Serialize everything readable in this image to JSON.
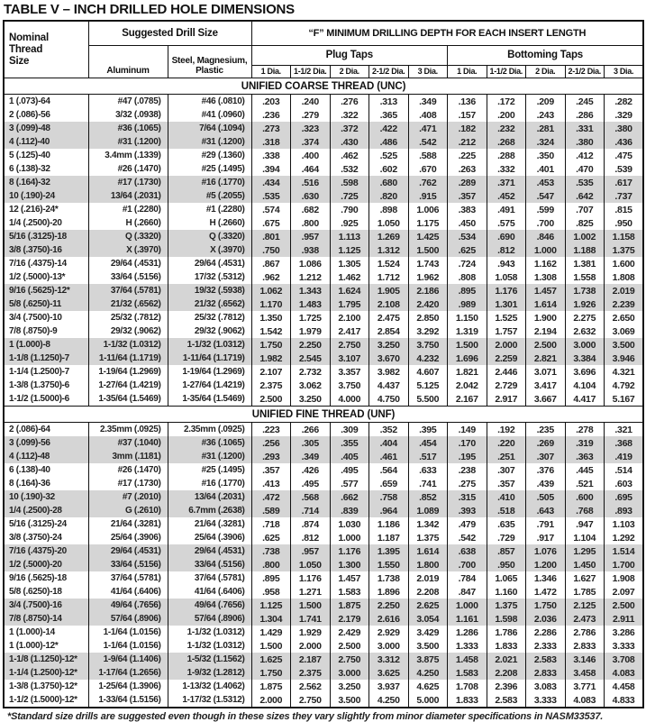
{
  "title": "TABLE V – INCH DRILLED HOLE DIMENSIONS",
  "header": {
    "nominal": "Nominal\nThread\nSize",
    "suggested": "Suggested Drill Size",
    "aluminum": "Aluminum",
    "steel": "Steel, Magnesium,\nPlastic",
    "f_header": "“F” MINIMUM DRILLING DEPTH FOR EACH INSERT LENGTH",
    "plug": "Plug Taps",
    "bottoming": "Bottoming Taps",
    "dia_labels": [
      "1 Dia.",
      "1-1/2 Dia.",
      "2 Dia.",
      "2-1/2 Dia.",
      "3 Dia."
    ]
  },
  "colors": {
    "row_shade": "#d5d5d5",
    "border": "#111111",
    "text": "#1b1b1b"
  },
  "sections": [
    {
      "name": "UNIFIED COARSE THREAD (UNC)",
      "rows": [
        {
          "size": "1 (.073)-64",
          "aluminum": "#47 (.0785)",
          "steel": "#46 (.0810)",
          "plug": [
            ".203",
            ".240",
            ".276",
            ".313",
            ".349"
          ],
          "bottoming": [
            ".136",
            ".172",
            ".209",
            ".245",
            ".282"
          ],
          "shaded": false
        },
        {
          "size": "2 (.086)-56",
          "aluminum": "3/32 (.0938)",
          "steel": "#41 (.0960)",
          "plug": [
            ".236",
            ".279",
            ".322",
            ".365",
            ".408"
          ],
          "bottoming": [
            ".157",
            ".200",
            ".243",
            ".286",
            ".329"
          ],
          "shaded": false
        },
        {
          "size": "3 (.099)-48",
          "aluminum": "#36 (.1065)",
          "steel": "7/64 (.1094)",
          "plug": [
            ".273",
            ".323",
            ".372",
            ".422",
            ".471"
          ],
          "bottoming": [
            ".182",
            ".232",
            ".281",
            ".331",
            ".380"
          ],
          "shaded": true
        },
        {
          "size": "4 (.112)-40",
          "aluminum": "#31 (.1200)",
          "steel": "#31 (.1200)",
          "plug": [
            ".318",
            ".374",
            ".430",
            ".486",
            ".542"
          ],
          "bottoming": [
            ".212",
            ".268",
            ".324",
            ".380",
            ".436"
          ],
          "shaded": true
        },
        {
          "size": "5 (.125)-40",
          "aluminum": "3.4mm (.1339)",
          "steel": "#29 (.1360)",
          "plug": [
            ".338",
            ".400",
            ".462",
            ".525",
            ".588"
          ],
          "bottoming": [
            ".225",
            ".288",
            ".350",
            ".412",
            ".475"
          ],
          "shaded": false
        },
        {
          "size": "6 (.138)-32",
          "aluminum": "#26 (.1470)",
          "steel": "#25 (.1495)",
          "plug": [
            ".394",
            ".464",
            ".532",
            ".602",
            ".670"
          ],
          "bottoming": [
            ".263",
            ".332",
            ".401",
            ".470",
            ".539"
          ],
          "shaded": false
        },
        {
          "size": "8 (.164)-32",
          "aluminum": "#17 (.1730)",
          "steel": "#16 (.1770)",
          "plug": [
            ".434",
            ".516",
            ".598",
            ".680",
            ".762"
          ],
          "bottoming": [
            ".289",
            ".371",
            ".453",
            ".535",
            ".617"
          ],
          "shaded": true
        },
        {
          "size": "10 (.190)-24",
          "aluminum": "13/64 (.2031)",
          "steel": "#5 (.2055)",
          "plug": [
            ".535",
            ".630",
            ".725",
            ".820",
            ".915"
          ],
          "bottoming": [
            ".357",
            ".452",
            ".547",
            ".642",
            ".737"
          ],
          "shaded": true
        },
        {
          "size": "12 (.216)-24*",
          "aluminum": "#1 (.2280)",
          "steel": "#1 (.2280)",
          "plug": [
            ".574",
            ".682",
            ".790",
            ".898",
            "1.006"
          ],
          "bottoming": [
            ".383",
            ".491",
            ".599",
            ".707",
            ".815"
          ],
          "shaded": false
        },
        {
          "size": "1/4 (.2500)-20",
          "aluminum": "H (.2660)",
          "steel": "H (.2660)",
          "plug": [
            ".675",
            ".800",
            ".925",
            "1.050",
            "1.175"
          ],
          "bottoming": [
            ".450",
            ".575",
            ".700",
            ".825",
            ".950"
          ],
          "shaded": false
        },
        {
          "size": "5/16 (.3125)-18",
          "aluminum": "Q (.3320)",
          "steel": "Q (.3320)",
          "plug": [
            ".801",
            ".957",
            "1.113",
            "1.269",
            "1.425"
          ],
          "bottoming": [
            ".534",
            ".690",
            ".846",
            "1.002",
            "1.158"
          ],
          "shaded": true
        },
        {
          "size": "3/8 (.3750)-16",
          "aluminum": "X (.3970)",
          "steel": "X (.3970)",
          "plug": [
            ".750",
            ".938",
            "1.125",
            "1.312",
            "1.500"
          ],
          "bottoming": [
            ".625",
            ".812",
            "1.000",
            "1.188",
            "1.375"
          ],
          "shaded": true
        },
        {
          "size": "7/16 (.4375)-14",
          "aluminum": "29/64 (.4531)",
          "steel": "29/64 (.4531)",
          "plug": [
            ".867",
            "1.086",
            "1.305",
            "1.524",
            "1.743"
          ],
          "bottoming": [
            ".724",
            ".943",
            "1.162",
            "1.381",
            "1.600"
          ],
          "shaded": false
        },
        {
          "size": "1/2 (.5000)-13*",
          "aluminum": "33/64 (.5156)",
          "steel": "17/32 (.5312)",
          "plug": [
            ".962",
            "1.212",
            "1.462",
            "1.712",
            "1.962"
          ],
          "bottoming": [
            ".808",
            "1.058",
            "1.308",
            "1.558",
            "1.808"
          ],
          "shaded": false
        },
        {
          "size": "9/16 (.5625)-12*",
          "aluminum": "37/64 (.5781)",
          "steel": "19/32 (.5938)",
          "plug": [
            "1.062",
            "1.343",
            "1.624",
            "1.905",
            "2.186"
          ],
          "bottoming": [
            ".895",
            "1.176",
            "1.457",
            "1.738",
            "2.019"
          ],
          "shaded": true
        },
        {
          "size": "5/8 (.6250)-11",
          "aluminum": "21/32 (.6562)",
          "steel": "21/32 (.6562)",
          "plug": [
            "1.170",
            "1.483",
            "1.795",
            "2.108",
            "2.420"
          ],
          "bottoming": [
            ".989",
            "1.301",
            "1.614",
            "1.926",
            "2.239"
          ],
          "shaded": true
        },
        {
          "size": "3/4 (.7500)-10",
          "aluminum": "25/32 (.7812)",
          "steel": "25/32 (.7812)",
          "plug": [
            "1.350",
            "1.725",
            "2.100",
            "2.475",
            "2.850"
          ],
          "bottoming": [
            "1.150",
            "1.525",
            "1.900",
            "2.275",
            "2.650"
          ],
          "shaded": false
        },
        {
          "size": "7/8 (.8750)-9",
          "aluminum": "29/32 (.9062)",
          "steel": "29/32 (.9062)",
          "plug": [
            "1.542",
            "1.979",
            "2.417",
            "2.854",
            "3.292"
          ],
          "bottoming": [
            "1.319",
            "1.757",
            "2.194",
            "2.632",
            "3.069"
          ],
          "shaded": false
        },
        {
          "size": "1 (1.000)-8",
          "aluminum": "1-1/32 (1.0312)",
          "steel": "1-1/32 (1.0312)",
          "plug": [
            "1.750",
            "2.250",
            "2.750",
            "3.250",
            "3.750"
          ],
          "bottoming": [
            "1.500",
            "2.000",
            "2.500",
            "3.000",
            "3.500"
          ],
          "shaded": true
        },
        {
          "size": "1-1/8 (1.1250)-7",
          "aluminum": "1-11/64 (1.1719)",
          "steel": "1-11/64 (1.1719)",
          "plug": [
            "1.982",
            "2.545",
            "3.107",
            "3.670",
            "4.232"
          ],
          "bottoming": [
            "1.696",
            "2.259",
            "2.821",
            "3.384",
            "3.946"
          ],
          "shaded": true
        },
        {
          "size": "1-1/4 (1.2500)-7",
          "aluminum": "1-19/64 (1.2969)",
          "steel": "1-19/64 (1.2969)",
          "plug": [
            "2.107",
            "2.732",
            "3.357",
            "3.982",
            "4.607"
          ],
          "bottoming": [
            "1.821",
            "2.446",
            "3.071",
            "3.696",
            "4.321"
          ],
          "shaded": false
        },
        {
          "size": "1-3/8 (1.3750)-6",
          "aluminum": "1-27/64 (1.4219)",
          "steel": "1-27/64 (1.4219)",
          "plug": [
            "2.375",
            "3.062",
            "3.750",
            "4.437",
            "5.125"
          ],
          "bottoming": [
            "2.042",
            "2.729",
            "3.417",
            "4.104",
            "4.792"
          ],
          "shaded": false
        },
        {
          "size": "1-1/2 (1.5000)-6",
          "aluminum": "1-35/64 (1.5469)",
          "steel": "1-35/64 (1.5469)",
          "plug": [
            "2.500",
            "3.250",
            "4.000",
            "4.750",
            "5.500"
          ],
          "bottoming": [
            "2.167",
            "2.917",
            "3.667",
            "4.417",
            "5.167"
          ],
          "shaded": false
        }
      ]
    },
    {
      "name": "UNIFIED FINE THREAD (UNF)",
      "rows": [
        {
          "size": "2 (.086)-64",
          "aluminum": "2.35mm (.0925)",
          "steel": "2.35mm (.0925)",
          "plug": [
            ".223",
            ".266",
            ".309",
            ".352",
            ".395"
          ],
          "bottoming": [
            ".149",
            ".192",
            ".235",
            ".278",
            ".321"
          ],
          "shaded": false
        },
        {
          "size": "3 (.099)-56",
          "aluminum": "#37 (.1040)",
          "steel": "#36 (.1065)",
          "plug": [
            ".256",
            ".305",
            ".355",
            ".404",
            ".454"
          ],
          "bottoming": [
            ".170",
            ".220",
            ".269",
            ".319",
            ".368"
          ],
          "shaded": true
        },
        {
          "size": "4 (.112)-48",
          "aluminum": "3mm (.1181)",
          "steel": "#31 (.1200)",
          "plug": [
            ".293",
            ".349",
            ".405",
            ".461",
            ".517"
          ],
          "bottoming": [
            ".195",
            ".251",
            ".307",
            ".363",
            ".419"
          ],
          "shaded": true
        },
        {
          "size": "6 (.138)-40",
          "aluminum": "#26 (.1470)",
          "steel": "#25 (.1495)",
          "plug": [
            ".357",
            ".426",
            ".495",
            ".564",
            ".633"
          ],
          "bottoming": [
            ".238",
            ".307",
            ".376",
            ".445",
            ".514"
          ],
          "shaded": false
        },
        {
          "size": "8 (.164)-36",
          "aluminum": "#17 (.1730)",
          "steel": "#16 (.1770)",
          "plug": [
            ".413",
            ".495",
            ".577",
            ".659",
            ".741"
          ],
          "bottoming": [
            ".275",
            ".357",
            ".439",
            ".521",
            ".603"
          ],
          "shaded": false
        },
        {
          "size": "10 (.190)-32",
          "aluminum": "#7 (.2010)",
          "steel": "13/64 (.2031)",
          "plug": [
            ".472",
            ".568",
            ".662",
            ".758",
            ".852"
          ],
          "bottoming": [
            ".315",
            ".410",
            ".505",
            ".600",
            ".695"
          ],
          "shaded": true
        },
        {
          "size": "1/4 (.2500)-28",
          "aluminum": "G (.2610)",
          "steel": "6.7mm (.2638)",
          "plug": [
            ".589",
            ".714",
            ".839",
            ".964",
            "1.089"
          ],
          "bottoming": [
            ".393",
            ".518",
            ".643",
            ".768",
            ".893"
          ],
          "shaded": true
        },
        {
          "size": "5/16 (.3125)-24",
          "aluminum": "21/64 (.3281)",
          "steel": "21/64 (.3281)",
          "plug": [
            ".718",
            ".874",
            "1.030",
            "1.186",
            "1.342"
          ],
          "bottoming": [
            ".479",
            ".635",
            ".791",
            ".947",
            "1.103"
          ],
          "shaded": false
        },
        {
          "size": "3/8 (.3750)-24",
          "aluminum": "25/64 (.3906)",
          "steel": "25/64 (.3906)",
          "plug": [
            ".625",
            ".812",
            "1.000",
            "1.187",
            "1.375"
          ],
          "bottoming": [
            ".542",
            ".729",
            ".917",
            "1.104",
            "1.292"
          ],
          "shaded": false
        },
        {
          "size": "7/16 (.4375)-20",
          "aluminum": "29/64 (.4531)",
          "steel": "29/64 (.4531)",
          "plug": [
            ".738",
            ".957",
            "1.176",
            "1.395",
            "1.614"
          ],
          "bottoming": [
            ".638",
            ".857",
            "1.076",
            "1.295",
            "1.514"
          ],
          "shaded": true
        },
        {
          "size": "1/2 (.5000)-20",
          "aluminum": "33/64 (.5156)",
          "steel": "33/64 (.5156)",
          "plug": [
            ".800",
            "1.050",
            "1.300",
            "1.550",
            "1.800"
          ],
          "bottoming": [
            ".700",
            ".950",
            "1.200",
            "1.450",
            "1.700"
          ],
          "shaded": true
        },
        {
          "size": "9/16 (.5625)-18",
          "aluminum": "37/64 (.5781)",
          "steel": "37/64 (.5781)",
          "plug": [
            ".895",
            "1.176",
            "1.457",
            "1.738",
            "2.019"
          ],
          "bottoming": [
            ".784",
            "1.065",
            "1.346",
            "1.627",
            "1.908"
          ],
          "shaded": false
        },
        {
          "size": "5/8 (.6250)-18",
          "aluminum": "41/64 (.6406)",
          "steel": "41/64 (.6406)",
          "plug": [
            ".958",
            "1.271",
            "1.583",
            "1.896",
            "2.208"
          ],
          "bottoming": [
            ".847",
            "1.160",
            "1.472",
            "1.785",
            "2.097"
          ],
          "shaded": false
        },
        {
          "size": "3/4 (.7500)-16",
          "aluminum": "49/64 (.7656)",
          "steel": "49/64 (.7656)",
          "plug": [
            "1.125",
            "1.500",
            "1.875",
            "2.250",
            "2.625"
          ],
          "bottoming": [
            "1.000",
            "1.375",
            "1.750",
            "2.125",
            "2.500"
          ],
          "shaded": true
        },
        {
          "size": "7/8 (.8750)-14",
          "aluminum": "57/64 (.8906)",
          "steel": "57/64 (.8906)",
          "plug": [
            "1.304",
            "1.741",
            "2.179",
            "2.616",
            "3.054"
          ],
          "bottoming": [
            "1.161",
            "1.598",
            "2.036",
            "2.473",
            "2.911"
          ],
          "shaded": true
        },
        {
          "size": "1 (1.000)-14",
          "aluminum": "1-1/64 (1.0156)",
          "steel": "1-1/32 (1.0312)",
          "plug": [
            "1.429",
            "1.929",
            "2.429",
            "2.929",
            "3.429"
          ],
          "bottoming": [
            "1.286",
            "1.786",
            "2.286",
            "2.786",
            "3.286"
          ],
          "shaded": false
        },
        {
          "size": "1 (1.000)-12*",
          "aluminum": "1-1/64 (1.0156)",
          "steel": "1-1/32 (1.0312)",
          "plug": [
            "1.500",
            "2.000",
            "2.500",
            "3.000",
            "3.500"
          ],
          "bottoming": [
            "1.333",
            "1.833",
            "2.333",
            "2.833",
            "3.333"
          ],
          "shaded": false
        },
        {
          "size": "1-1/8 (1.1250)-12*",
          "aluminum": "1-9/64 (1.1406)",
          "steel": "1-5/32 (1.1562)",
          "plug": [
            "1.625",
            "2.187",
            "2.750",
            "3.312",
            "3.875"
          ],
          "bottoming": [
            "1.458",
            "2.021",
            "2.583",
            "3.146",
            "3.708"
          ],
          "shaded": true
        },
        {
          "size": "1-1/4 (1.2500)-12*",
          "aluminum": "1-17/64 (1.2656)",
          "steel": "1-9/32 (1.2812)",
          "plug": [
            "1.750",
            "2.375",
            "3.000",
            "3.625",
            "4.250"
          ],
          "bottoming": [
            "1.583",
            "2.208",
            "2.833",
            "3.458",
            "4.083"
          ],
          "shaded": true
        },
        {
          "size": "1-3/8 (1.3750)-12*",
          "aluminum": "1-25/64 (1.3906)",
          "steel": "1-13/32 (1.4062)",
          "plug": [
            "1.875",
            "2.562",
            "3.250",
            "3.937",
            "4.625"
          ],
          "bottoming": [
            "1.708",
            "2.396",
            "3.083",
            "3.771",
            "4.458"
          ],
          "shaded": false
        },
        {
          "size": "1-1/2 (1.5000)-12*",
          "aluminum": "1-33/64 (1.5156)",
          "steel": "1-17/32 (1.5312)",
          "plug": [
            "2.000",
            "2.750",
            "3.500",
            "4.250",
            "5.000"
          ],
          "bottoming": [
            "1.833",
            "2.583",
            "3.333",
            "4.083",
            "4.833"
          ],
          "shaded": false
        }
      ]
    }
  ],
  "footnote": "*Standard size drills are suggested even though in these sizes they vary slightly from minor diameter specifications in NASM33537."
}
